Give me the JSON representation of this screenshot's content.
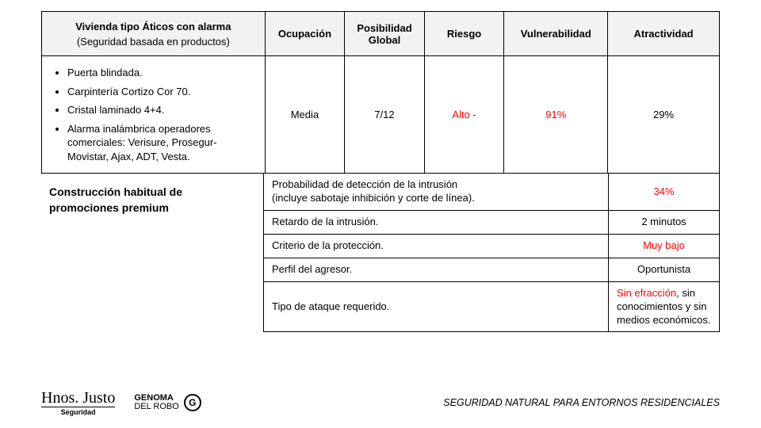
{
  "table": {
    "header": {
      "title": "Vivienda tipo Áticos con alarma",
      "subtitle": "(Seguridad basada en productos)",
      "cols": {
        "ocupacion": "Ocupación",
        "posibilidad": "Posibilidad Global",
        "riesgo": "Riesgo",
        "vulnerabilidad": "Vulnerabilidad",
        "atractividad": "Atractividad"
      }
    },
    "features": [
      "Puerta blindada.",
      "Carpintería Cortizo Cor 70.",
      "Cristal laminado 4+4.",
      "Alarma inalámbrica operadores comerciales: Verisure, Prosegur-Movistar, Ajax, ADT, Vesta."
    ],
    "values": {
      "ocupacion": "Media",
      "posibilidad": "7/12",
      "riesgo": "Alto -",
      "vulnerabilidad": "91%",
      "atractividad": "29%"
    }
  },
  "side_note": "Construcción habitual  de promociones premium",
  "detail_rows": [
    {
      "label": "Probabilidad de detección de la intrusión\n(incluye sabotaje inhibición y corte de línea).",
      "value": "34%",
      "value_red": true
    },
    {
      "label": "Retardo de la intrusión.",
      "value": "2 minutos",
      "value_red": false
    },
    {
      "label": "Criterio de la protección.",
      "value": "Muy bajo",
      "value_red": true
    },
    {
      "label": "Perfil del agresor.",
      "value": "Oportunista",
      "value_red": false
    },
    {
      "label": "Tipo de ataque requerido.",
      "value_html": true,
      "value_parts": {
        "pre": "Sin efracción",
        "post": ", sin conocimientos y sin medios económicos."
      }
    }
  ],
  "footer": {
    "logo1_top": "Hnos. Justo",
    "logo1_sub": "Seguridad",
    "logo2_line1": "GENOMA",
    "logo2_line2": "DEL ROBO",
    "logo2_g": "G",
    "tagline": "SEGURIDAD NATURAL PARA ENTORNOS RESIDENCIALES"
  },
  "colors": {
    "red": "#ff0000",
    "header_bg": "#f2f2f2",
    "border": "#000000",
    "text": "#000000",
    "background": "#ffffff"
  }
}
